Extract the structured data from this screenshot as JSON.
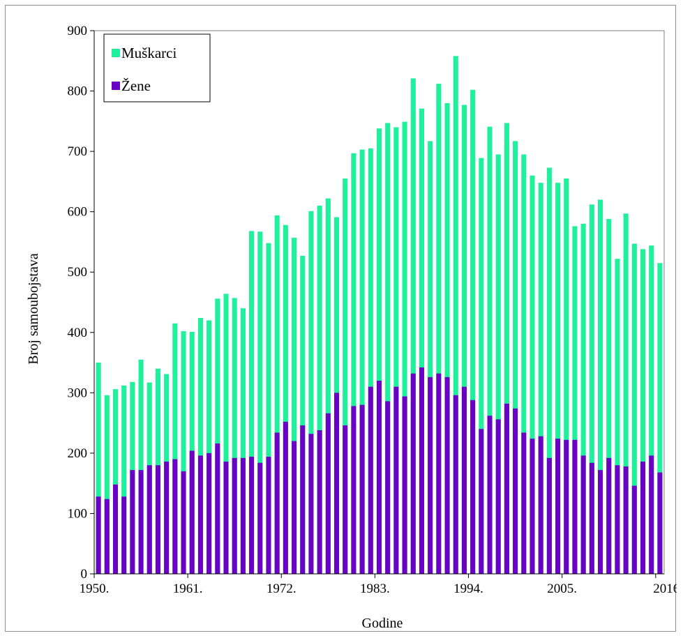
{
  "chart_data": {
    "type": "bar",
    "xlabel": "Godine",
    "ylabel": "Broj samoubojstava",
    "ylim": [
      0,
      900
    ],
    "yticks": [
      0,
      100,
      200,
      300,
      400,
      500,
      600,
      700,
      800,
      900
    ],
    "xtick_labels": [
      "1950.",
      "1961.",
      "1972.",
      "1983.",
      "1994.",
      "2005.",
      "2016."
    ],
    "categories": [
      1950,
      1951,
      1952,
      1953,
      1954,
      1955,
      1956,
      1957,
      1958,
      1959,
      1960,
      1961,
      1962,
      1963,
      1964,
      1965,
      1966,
      1967,
      1968,
      1969,
      1970,
      1971,
      1972,
      1973,
      1974,
      1975,
      1976,
      1977,
      1978,
      1979,
      1980,
      1981,
      1982,
      1983,
      1984,
      1985,
      1986,
      1987,
      1988,
      1989,
      1990,
      1991,
      1992,
      1993,
      1994,
      1995,
      1996,
      1997,
      1998,
      1999,
      2000,
      2001,
      2002,
      2003,
      2004,
      2005,
      2006,
      2007,
      2008,
      2009,
      2010,
      2011,
      2012,
      2013,
      2014,
      2015,
      2016
    ],
    "legend": {
      "position": "top-left"
    },
    "grid": false,
    "series": [
      {
        "name": "Muškarci",
        "color": "#1EF09B",
        "values": [
          350,
          296,
          306,
          312,
          318,
          355,
          317,
          340,
          331,
          415,
          402,
          401,
          424,
          420,
          456,
          464,
          457,
          440,
          568,
          567,
          548,
          594,
          578,
          557,
          527,
          601,
          610,
          622,
          591,
          655,
          697,
          703,
          705,
          738,
          747,
          740,
          749,
          821,
          771,
          717,
          812,
          780,
          858,
          777,
          802,
          689,
          741,
          695,
          747,
          717,
          695,
          660,
          648,
          673,
          648,
          655,
          576,
          580,
          612,
          620,
          588,
          522,
          597,
          547,
          538,
          544,
          515
        ],
        "values_note": "bar top (stacked total)"
      },
      {
        "name": "Žene",
        "color": "#6A02C6",
        "values": [
          128,
          124,
          148,
          128,
          172,
          172,
          180,
          180,
          186,
          190,
          170,
          204,
          196,
          200,
          216,
          186,
          192,
          192,
          194,
          184,
          194,
          234,
          252,
          220,
          246,
          232,
          238,
          266,
          300,
          246,
          278,
          280,
          310,
          320,
          286,
          310,
          294,
          332,
          342,
          326,
          332,
          326,
          296,
          310,
          288,
          240,
          262,
          256,
          282,
          274,
          234,
          224,
          228,
          192,
          224,
          222,
          222,
          196,
          184,
          172,
          192,
          180,
          178,
          146,
          186,
          196,
          168
        ]
      }
    ]
  }
}
